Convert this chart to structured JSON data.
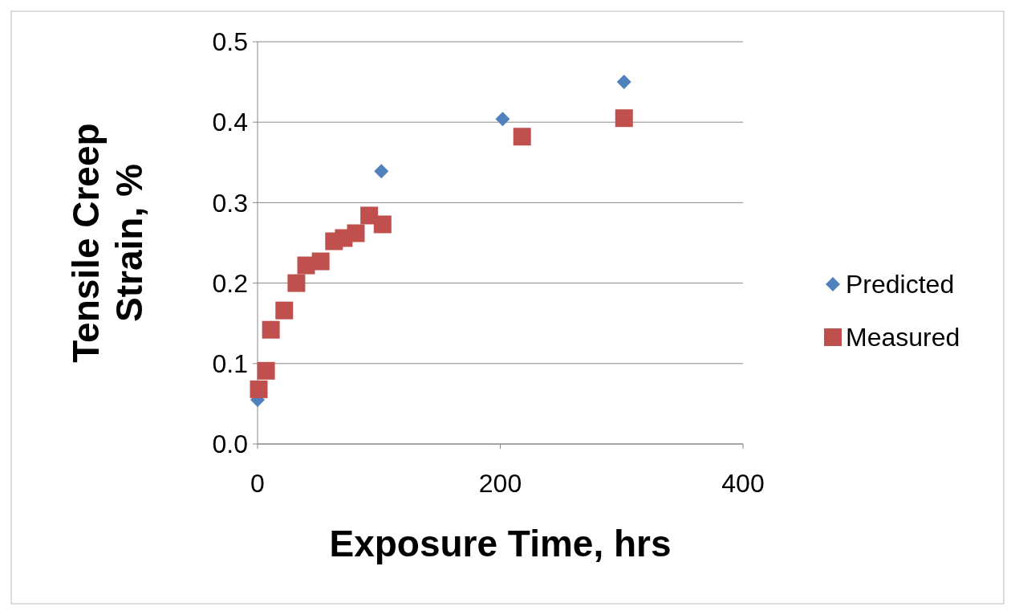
{
  "chart_data": {
    "type": "scatter",
    "xlabel": "Exposure Time, hrs",
    "ylabel": "Tensile Creep\nStrain, %",
    "xlim": [
      0,
      400
    ],
    "xticks": [
      0,
      200,
      400
    ],
    "ylim": [
      0,
      0.5
    ],
    "yticks": [
      {
        "value": 0,
        "label": "0.0"
      },
      0.1,
      0.2,
      0.3,
      0.4,
      0.5
    ],
    "grid": "y",
    "legend": "right",
    "series": [
      {
        "name": "Predicted",
        "color": "#4f81bd",
        "marker": "diamond",
        "x": [
          0,
          102,
          202,
          302
        ],
        "values": [
          0.055,
          0.339,
          0.404,
          0.45
        ]
      },
      {
        "name": "Measured",
        "color": "#c0504d",
        "marker": "square",
        "x": [
          1,
          7,
          11,
          22,
          32,
          40,
          52,
          63,
          71,
          81,
          92,
          103,
          218,
          302
        ],
        "values": [
          0.068,
          0.091,
          0.142,
          0.166,
          0.2,
          0.222,
          0.227,
          0.252,
          0.256,
          0.262,
          0.284,
          0.273,
          0.382,
          0.405
        ]
      }
    ]
  }
}
